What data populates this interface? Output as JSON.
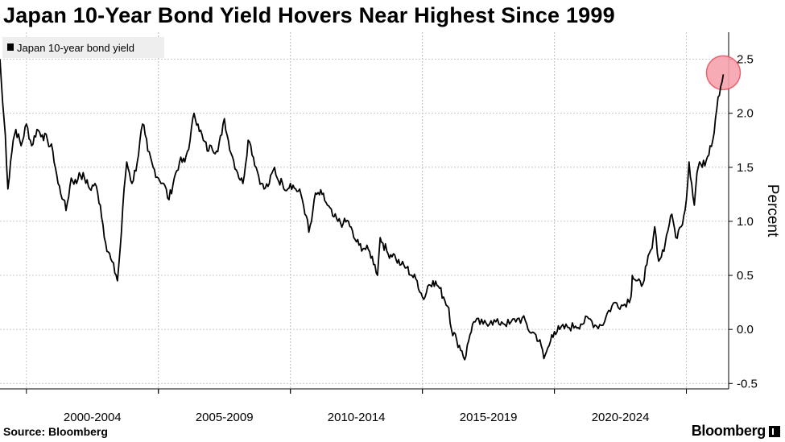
{
  "title": "Japan 10-Year Bond Yield Hovers Near Highest Since 1999",
  "source": "Source: Bloomberg",
  "brand": "Bloomberg",
  "colors": {
    "line": "#000000",
    "grid": "#c8c8c8",
    "highlight_fill": "#f7a3ae",
    "highlight_stroke": "#e8525f",
    "legend_bg": "#eeeeee"
  },
  "chart_data": {
    "type": "line",
    "title": "Japan 10-Year Bond Yield Hovers Near Highest Since 1999",
    "legend": [
      "Japan 10-year bond yield"
    ],
    "ylabel": "Percent",
    "xlabel": "",
    "ylim": [
      -0.55,
      2.75
    ],
    "xlim": [
      1999.0,
      2026.6
    ],
    "yticks": [
      -0.5,
      0.0,
      0.5,
      1.0,
      1.5,
      2.0,
      2.5
    ],
    "ytick_labels": [
      "-0.5",
      "0.0",
      "0.5",
      "1.0",
      "1.5",
      "2.0",
      "2.5"
    ],
    "xticks": [
      {
        "label": "2000-2004",
        "from": 2000,
        "to": 2005
      },
      {
        "label": "2005-2009",
        "from": 2005,
        "to": 2010
      },
      {
        "label": "2010-2014",
        "from": 2010,
        "to": 2015
      },
      {
        "label": "2015-2019",
        "from": 2015,
        "to": 2020
      },
      {
        "label": "2020-2024",
        "from": 2020,
        "to": 2025
      }
    ],
    "grid": true,
    "highlight": {
      "x": 2026.4,
      "y": 2.36,
      "note": "circled latest value"
    },
    "series": [
      {
        "name": "Japan 10-year bond yield",
        "points": [
          [
            1999.0,
            2.5
          ],
          [
            1999.1,
            2.1
          ],
          [
            1999.2,
            1.8
          ],
          [
            1999.3,
            1.3
          ],
          [
            1999.4,
            1.55
          ],
          [
            1999.5,
            1.75
          ],
          [
            1999.6,
            1.85
          ],
          [
            1999.8,
            1.7
          ],
          [
            2000.0,
            1.9
          ],
          [
            2000.2,
            1.7
          ],
          [
            2000.4,
            1.85
          ],
          [
            2000.6,
            1.8
          ],
          [
            2000.8,
            1.75
          ],
          [
            2001.0,
            1.65
          ],
          [
            2001.2,
            1.35
          ],
          [
            2001.4,
            1.2
          ],
          [
            2001.5,
            1.1
          ],
          [
            2001.7,
            1.4
          ],
          [
            2001.9,
            1.35
          ],
          [
            2002.0,
            1.45
          ],
          [
            2002.2,
            1.4
          ],
          [
            2002.4,
            1.3
          ],
          [
            2002.6,
            1.35
          ],
          [
            2002.8,
            1.15
          ],
          [
            2003.0,
            0.8
          ],
          [
            2003.2,
            0.65
          ],
          [
            2003.4,
            0.5
          ],
          [
            2003.45,
            0.45
          ],
          [
            2003.6,
            0.9
          ],
          [
            2003.7,
            1.3
          ],
          [
            2003.8,
            1.55
          ],
          [
            2003.9,
            1.45
          ],
          [
            2004.0,
            1.35
          ],
          [
            2004.2,
            1.55
          ],
          [
            2004.4,
            1.9
          ],
          [
            2004.5,
            1.8
          ],
          [
            2004.6,
            1.65
          ],
          [
            2004.8,
            1.5
          ],
          [
            2005.0,
            1.4
          ],
          [
            2005.2,
            1.35
          ],
          [
            2005.4,
            1.2
          ],
          [
            2005.6,
            1.4
          ],
          [
            2005.8,
            1.55
          ],
          [
            2006.0,
            1.55
          ],
          [
            2006.2,
            1.75
          ],
          [
            2006.35,
            2.0
          ],
          [
            2006.5,
            1.9
          ],
          [
            2006.7,
            1.75
          ],
          [
            2006.9,
            1.65
          ],
          [
            2007.0,
            1.7
          ],
          [
            2007.2,
            1.65
          ],
          [
            2007.4,
            1.8
          ],
          [
            2007.5,
            1.95
          ],
          [
            2007.6,
            1.8
          ],
          [
            2007.8,
            1.6
          ],
          [
            2008.0,
            1.45
          ],
          [
            2008.2,
            1.35
          ],
          [
            2008.4,
            1.75
          ],
          [
            2008.5,
            1.7
          ],
          [
            2008.7,
            1.5
          ],
          [
            2008.9,
            1.35
          ],
          [
            2009.0,
            1.3
          ],
          [
            2009.2,
            1.35
          ],
          [
            2009.4,
            1.5
          ],
          [
            2009.5,
            1.4
          ],
          [
            2009.7,
            1.35
          ],
          [
            2009.9,
            1.3
          ],
          [
            2010.0,
            1.35
          ],
          [
            2010.2,
            1.3
          ],
          [
            2010.4,
            1.25
          ],
          [
            2010.6,
            1.05
          ],
          [
            2010.7,
            0.9
          ],
          [
            2010.8,
            1.0
          ],
          [
            2010.9,
            1.2
          ],
          [
            2011.0,
            1.25
          ],
          [
            2011.2,
            1.25
          ],
          [
            2011.4,
            1.15
          ],
          [
            2011.6,
            1.05
          ],
          [
            2011.8,
            1.0
          ],
          [
            2012.0,
            0.98
          ],
          [
            2012.2,
            1.0
          ],
          [
            2012.4,
            0.85
          ],
          [
            2012.6,
            0.78
          ],
          [
            2012.8,
            0.75
          ],
          [
            2013.0,
            0.72
          ],
          [
            2013.2,
            0.6
          ],
          [
            2013.3,
            0.5
          ],
          [
            2013.4,
            0.85
          ],
          [
            2013.5,
            0.8
          ],
          [
            2013.7,
            0.7
          ],
          [
            2013.9,
            0.7
          ],
          [
            2014.0,
            0.65
          ],
          [
            2014.2,
            0.6
          ],
          [
            2014.4,
            0.57
          ],
          [
            2014.6,
            0.5
          ],
          [
            2014.8,
            0.45
          ],
          [
            2015.0,
            0.3
          ],
          [
            2015.1,
            0.3
          ],
          [
            2015.2,
            0.4
          ],
          [
            2015.4,
            0.45
          ],
          [
            2015.6,
            0.4
          ],
          [
            2015.8,
            0.3
          ],
          [
            2016.0,
            0.2
          ],
          [
            2016.1,
            0.0
          ],
          [
            2016.3,
            -0.1
          ],
          [
            2016.5,
            -0.2
          ],
          [
            2016.6,
            -0.28
          ],
          [
            2016.8,
            -0.05
          ],
          [
            2016.9,
            0.05
          ],
          [
            2017.0,
            0.07
          ],
          [
            2017.3,
            0.05
          ],
          [
            2017.6,
            0.08
          ],
          [
            2017.9,
            0.05
          ],
          [
            2018.0,
            0.07
          ],
          [
            2018.3,
            0.05
          ],
          [
            2018.6,
            0.1
          ],
          [
            2018.9,
            0.08
          ],
          [
            2019.0,
            0.0
          ],
          [
            2019.3,
            -0.05
          ],
          [
            2019.5,
            -0.15
          ],
          [
            2019.6,
            -0.27
          ],
          [
            2019.8,
            -0.15
          ],
          [
            2019.9,
            -0.05
          ],
          [
            2020.0,
            -0.02
          ],
          [
            2020.2,
            0.0
          ],
          [
            2020.5,
            0.02
          ],
          [
            2020.8,
            0.03
          ],
          [
            2021.0,
            0.05
          ],
          [
            2021.3,
            0.1
          ],
          [
            2021.6,
            0.03
          ],
          [
            2021.9,
            0.07
          ],
          [
            2022.0,
            0.15
          ],
          [
            2022.3,
            0.25
          ],
          [
            2022.6,
            0.22
          ],
          [
            2022.9,
            0.3
          ],
          [
            2022.95,
            0.5
          ],
          [
            2023.1,
            0.45
          ],
          [
            2023.3,
            0.4
          ],
          [
            2023.5,
            0.6
          ],
          [
            2023.7,
            0.75
          ],
          [
            2023.8,
            0.95
          ],
          [
            2023.9,
            0.7
          ],
          [
            2024.0,
            0.65
          ],
          [
            2024.2,
            0.8
          ],
          [
            2024.4,
            1.05
          ],
          [
            2024.5,
            1.0
          ],
          [
            2024.6,
            0.85
          ],
          [
            2024.8,
            0.95
          ],
          [
            2025.0,
            1.2
          ],
          [
            2025.1,
            1.55
          ],
          [
            2025.2,
            1.35
          ],
          [
            2025.3,
            1.15
          ],
          [
            2025.4,
            1.45
          ],
          [
            2025.5,
            1.55
          ],
          [
            2025.6,
            1.5
          ],
          [
            2025.8,
            1.6
          ],
          [
            2025.9,
            1.7
          ],
          [
            2026.0,
            1.75
          ],
          [
            2026.1,
            1.95
          ],
          [
            2026.2,
            2.15
          ],
          [
            2026.3,
            2.25
          ],
          [
            2026.4,
            2.36
          ]
        ]
      }
    ]
  }
}
